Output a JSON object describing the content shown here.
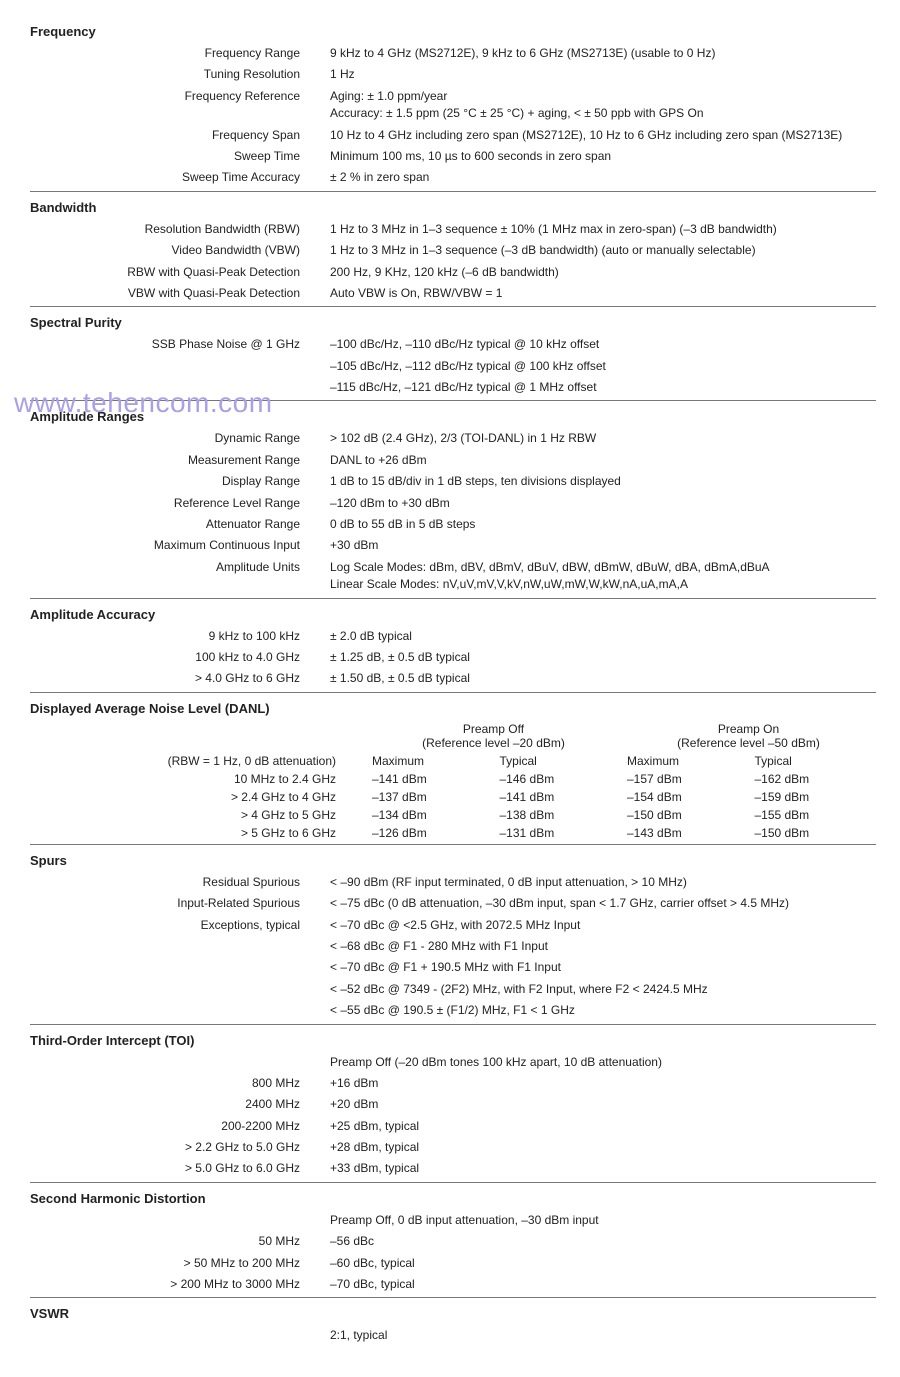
{
  "watermark": "www.tehencom.com",
  "sections": {
    "frequency": {
      "title": "Frequency",
      "rows": [
        {
          "l": "Frequency Range",
          "v": "9 kHz to 4 GHz (MS2712E), 9 kHz to 6 GHz (MS2713E) (usable to 0 Hz)"
        },
        {
          "l": "Tuning Resolution",
          "v": "1 Hz"
        },
        {
          "l": "Frequency Reference",
          "v": "Aging: ± 1.0 ppm/year\nAccuracy: ± 1.5 ppm (25 °C ± 25 °C) + aging, < ± 50 ppb with GPS On"
        },
        {
          "l": "Frequency Span",
          "v": "10 Hz to 4 GHz including zero span (MS2712E), 10 Hz to 6 GHz including zero span (MS2713E)"
        },
        {
          "l": "Sweep Time",
          "v": "Minimum 100 ms, 10 µs to 600 seconds in zero span"
        },
        {
          "l": "Sweep Time Accuracy",
          "v": "± 2 % in zero span"
        }
      ]
    },
    "bandwidth": {
      "title": "Bandwidth",
      "rows": [
        {
          "l": "Resolution Bandwidth (RBW)",
          "v": "1 Hz to 3 MHz in 1–3 sequence ± 10% (1 MHz max in zero-span) (–3 dB bandwidth)"
        },
        {
          "l": "Video Bandwidth (VBW)",
          "v": "1 Hz to 3 MHz in 1–3 sequence (–3 dB bandwidth) (auto or manually selectable)"
        },
        {
          "l": "RBW with Quasi-Peak Detection",
          "v": "200 Hz, 9 KHz, 120 kHz (–6 dB bandwidth)"
        },
        {
          "l": "VBW with Quasi-Peak Detection",
          "v": "Auto VBW is On, RBW/VBW = 1"
        }
      ]
    },
    "spectral": {
      "title": "Spectral Purity",
      "rows": [
        {
          "l": "SSB Phase Noise @ 1 GHz",
          "v": "–100 dBc/Hz, –110 dBc/Hz typical @ 10 kHz offset"
        },
        {
          "l": "",
          "v": "–105 dBc/Hz, –112 dBc/Hz typical @ 100 kHz offset"
        },
        {
          "l": "",
          "v": "–115 dBc/Hz, –121 dBc/Hz typical @ 1 MHz offset"
        }
      ]
    },
    "ampRanges": {
      "title": "Amplitude Ranges",
      "rows": [
        {
          "l": "Dynamic Range",
          "v": "> 102 dB (2.4 GHz), 2/3 (TOI-DANL) in 1 Hz RBW"
        },
        {
          "l": "Measurement Range",
          "v": "DANL to +26 dBm"
        },
        {
          "l": "Display Range",
          "v": "1 dB to 15 dB/div in 1 dB steps, ten divisions displayed"
        },
        {
          "l": "Reference Level Range",
          "v": "–120 dBm to +30 dBm"
        },
        {
          "l": "Attenuator Range",
          "v": "0 dB to 55 dB in 5 dB steps"
        },
        {
          "l": "Maximum Continuous Input",
          "v": "+30 dBm"
        },
        {
          "l": "Amplitude Units",
          "v": "Log Scale Modes: dBm, dBV, dBmV, dBuV, dBW, dBmW, dBuW, dBA, dBmA,dBuA\nLinear Scale Modes: nV,uV,mV,V,kV,nW,uW,mW,W,kW,nA,uA,mA,A"
        }
      ]
    },
    "ampAccuracy": {
      "title": "Amplitude Accuracy",
      "rows": [
        {
          "l": "9 kHz to 100 kHz",
          "v": "± 2.0 dB typical"
        },
        {
          "l": "100 kHz to 4.0 GHz",
          "v": "± 1.25 dB, ± 0.5 dB typical"
        },
        {
          "l": "> 4.0 GHz to 6 GHz",
          "v": "± 1.50 dB, ± 0.5 dB typical"
        }
      ]
    },
    "danl": {
      "title": "Displayed Average Noise Level (DANL)",
      "grouphead1a": "Preamp Off",
      "grouphead1b": "(Reference level –20 dBm)",
      "grouphead2a": "Preamp On",
      "grouphead2b": "(Reference level –50 dBm)",
      "col0": "(RBW = 1 Hz, 0 dB attenuation)",
      "col1": "Maximum",
      "col2": "Typical",
      "col3": "Maximum",
      "col4": "Typical",
      "rows": [
        {
          "l": "10 MHz to 2.4 GHz",
          "c": [
            "–141 dBm",
            "–146 dBm",
            "–157 dBm",
            "–162 dBm"
          ]
        },
        {
          "l": "> 2.4 GHz to 4 GHz",
          "c": [
            "–137 dBm",
            "–141 dBm",
            "–154 dBm",
            "–159 dBm"
          ]
        },
        {
          "l": "> 4 GHz to 5 GHz",
          "c": [
            "–134 dBm",
            "–138 dBm",
            "–150 dBm",
            "–155 dBm"
          ]
        },
        {
          "l": "> 5 GHz to 6 GHz",
          "c": [
            "–126 dBm",
            "–131 dBm",
            "–143 dBm",
            "–150 dBm"
          ]
        }
      ]
    },
    "spurs": {
      "title": "Spurs",
      "rows": [
        {
          "l": "Residual Spurious",
          "v": "< –90 dBm (RF input terminated, 0 dB input attenuation, > 10 MHz)"
        },
        {
          "l": "Input-Related Spurious",
          "v": "< –75 dBc (0 dB attenuation, –30 dBm input, span < 1.7 GHz, carrier offset > 4.5 MHz)"
        },
        {
          "l": "Exceptions, typical",
          "v": "< –70 dBc @ <2.5 GHz, with 2072.5 MHz Input"
        },
        {
          "l": "",
          "v": "< –68 dBc @ F1 - 280 MHz with F1 Input"
        },
        {
          "l": "",
          "v": "< –70 dBc @ F1 + 190.5 MHz with F1 Input"
        },
        {
          "l": "",
          "v": "< –52 dBc @ 7349 - (2F2) MHz, with F2 Input, where F2 < 2424.5 MHz"
        },
        {
          "l": "",
          "v": "< –55 dBc @ 190.5 ± (F1/2) MHz, F1 < 1 GHz"
        }
      ]
    },
    "toi": {
      "title": "Third-Order Intercept (TOI)",
      "rows": [
        {
          "l": "",
          "v": "Preamp Off (–20 dBm tones 100 kHz apart, 10 dB attenuation)"
        },
        {
          "l": "800 MHz",
          "v": "+16 dBm"
        },
        {
          "l": "2400 MHz",
          "v": "+20 dBm"
        },
        {
          "l": "200-2200 MHz",
          "v": "+25 dBm, typical"
        },
        {
          "l": "> 2.2 GHz to 5.0 GHz",
          "v": "+28 dBm, typical"
        },
        {
          "l": "> 5.0 GHz to 6.0 GHz",
          "v": "+33 dBm, typical"
        }
      ]
    },
    "shd": {
      "title": "Second Harmonic Distortion",
      "rows": [
        {
          "l": "",
          "v": "Preamp Off, 0 dB input attenuation, –30 dBm input"
        },
        {
          "l": "50 MHz",
          "v": "–56 dBc"
        },
        {
          "l": "> 50 MHz to 200 MHz",
          "v": "–60 dBc, typical"
        },
        {
          "l": "> 200 MHz to 3000 MHz",
          "v": "–70 dBc, typical"
        }
      ]
    },
    "vswr": {
      "title": "VSWR",
      "rows": [
        {
          "l": "",
          "v": "2:1, typical"
        }
      ]
    }
  }
}
